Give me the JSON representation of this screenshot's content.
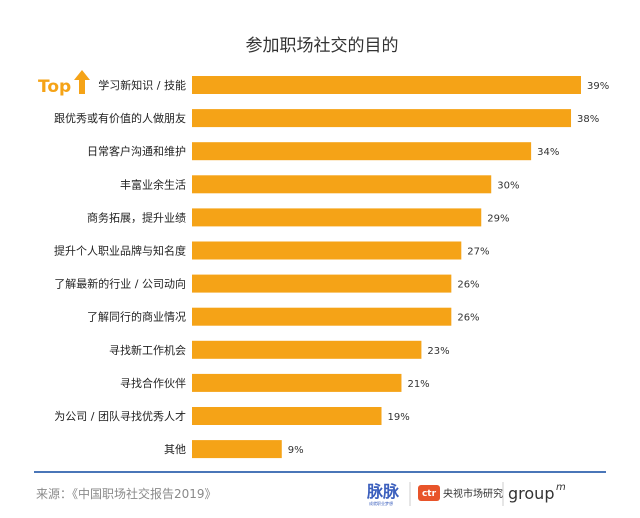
{
  "chart_data": {
    "type": "bar",
    "orientation": "horizontal",
    "title": "参加职场社交的目的",
    "categories": [
      "学习新知识 / 技能",
      "跟优秀或有价值的人做朋友",
      "日常客户沟通和维护",
      "丰富业余生活",
      "商务拓展，提升业绩",
      "提升个人职业品牌与知名度",
      "了解最新的行业 / 公司动向",
      "了解同行的商业情况",
      "寻找新工作机会",
      "寻找合作伙伴",
      "为公司 / 团队寻找优秀人才",
      "其他"
    ],
    "values": [
      39,
      38,
      34,
      30,
      29,
      27,
      26,
      26,
      23,
      21,
      19,
      9
    ],
    "value_labels": [
      "39%",
      "38%",
      "34%",
      "30%",
      "29%",
      "27%",
      "26%",
      "26%",
      "23%",
      "21%",
      "19%",
      "9%"
    ],
    "xlim": [
      0,
      39
    ],
    "grid": false,
    "legend": "none",
    "bar_color": "#f5a317"
  },
  "annotation": {
    "top_label": "Top"
  },
  "footer": {
    "source": "来源：《中国职场社交报告2019》",
    "logos": {
      "maimai": "脉脉",
      "maimai_sub": "成就职业梦想",
      "ctr_badge": "ctr",
      "ctr_name": "央视市场研究",
      "groupm": "group",
      "groupm_sup": "m"
    }
  },
  "colors": {
    "bar": "#f5a317",
    "footer_line": "#4a76b8",
    "maimai": "#3b5fbd",
    "ctr": "#e8542a"
  }
}
